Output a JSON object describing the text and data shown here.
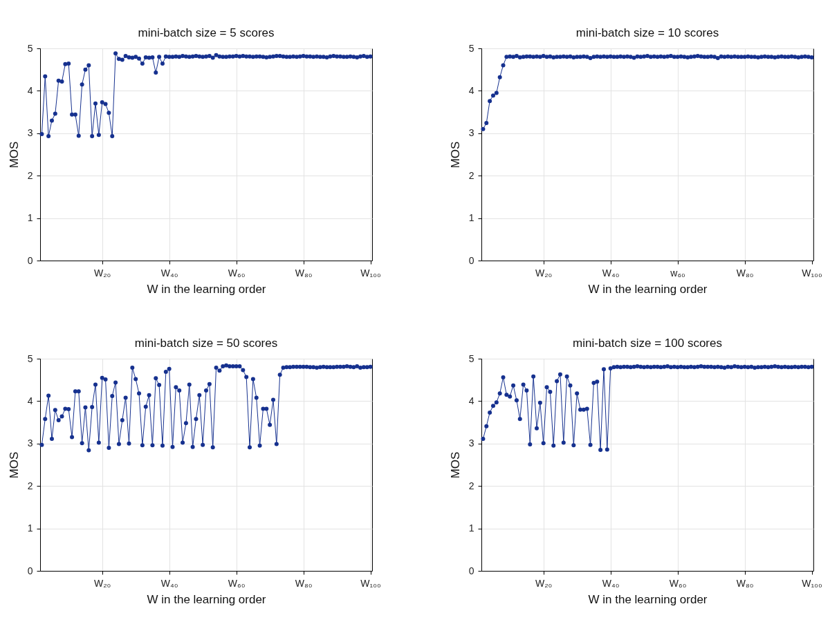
{
  "chart_data": [
    {
      "type": "line",
      "title": "mini-batch size = 5 scores",
      "xlabel": "W in the learning order",
      "ylabel": "MOS",
      "ylim": [
        0,
        5
      ],
      "yticks": [
        0,
        1,
        2,
        3,
        4,
        5
      ],
      "grid": true,
      "marker": "circle",
      "categories": [
        null,
        null,
        null,
        null,
        null,
        null,
        null,
        null,
        null,
        null,
        null,
        null,
        null,
        null,
        null,
        null,
        null,
        null,
        "W₂₀",
        null,
        null,
        null,
        null,
        null,
        null,
        null,
        null,
        null,
        null,
        null,
        null,
        null,
        null,
        null,
        null,
        null,
        null,
        null,
        "W₄₀",
        null,
        null,
        null,
        null,
        null,
        null,
        null,
        null,
        null,
        null,
        null,
        null,
        null,
        null,
        null,
        null,
        null,
        null,
        null,
        "W₆₀",
        null,
        null,
        null,
        null,
        null,
        null,
        null,
        null,
        null,
        null,
        null,
        null,
        null,
        null,
        null,
        null,
        null,
        null,
        null,
        "W₈₀",
        null,
        null,
        null,
        null,
        null,
        null,
        null,
        null,
        null,
        null,
        null,
        null,
        null,
        null,
        null,
        null,
        null,
        null,
        null,
        "W₁₀₀"
      ],
      "series": [
        {
          "color": "#16318f",
          "values": [
            2.98,
            4.34,
            2.93,
            3.3,
            3.46,
            4.24,
            4.22,
            4.63,
            4.64,
            3.44,
            3.44,
            2.94,
            4.15,
            4.5,
            4.6,
            2.93,
            3.7,
            2.96,
            3.73,
            3.69,
            3.48,
            2.93,
            4.88,
            4.75,
            4.73,
            4.82,
            4.79,
            4.78,
            4.8,
            4.76,
            4.64,
            4.79,
            4.78,
            4.79,
            4.43,
            4.8,
            4.64,
            4.81,
            4.8,
            4.8,
            4.81,
            4.8,
            4.82,
            4.81,
            4.8,
            4.81,
            4.82,
            4.81,
            4.8,
            4.81,
            4.82,
            4.78,
            4.84,
            4.81,
            4.8,
            4.8,
            4.81,
            4.81,
            4.82,
            4.81,
            4.82,
            4.81,
            4.81,
            4.8,
            4.81,
            4.81,
            4.8,
            4.79,
            4.8,
            4.81,
            4.82,
            4.82,
            4.81,
            4.8,
            4.8,
            4.81,
            4.8,
            4.81,
            4.82,
            4.81,
            4.81,
            4.8,
            4.81,
            4.8,
            4.8,
            4.79,
            4.81,
            4.82,
            4.81,
            4.81,
            4.8,
            4.8,
            4.81,
            4.8,
            4.79,
            4.81,
            4.82,
            4.8,
            4.81
          ]
        }
      ]
    },
    {
      "type": "line",
      "title": "mini-batch size = 10 scores",
      "xlabel": "W in the learning order",
      "ylabel": "MOS",
      "ylim": [
        0,
        5
      ],
      "yticks": [
        0,
        1,
        2,
        3,
        4,
        5
      ],
      "grid": true,
      "marker": "circle",
      "categories": [
        null,
        null,
        null,
        null,
        null,
        null,
        null,
        null,
        null,
        null,
        null,
        null,
        null,
        null,
        null,
        null,
        null,
        null,
        "W₂₀",
        null,
        null,
        null,
        null,
        null,
        null,
        null,
        null,
        null,
        null,
        null,
        null,
        null,
        null,
        null,
        null,
        null,
        null,
        null,
        "W₄₀",
        null,
        null,
        null,
        null,
        null,
        null,
        null,
        null,
        null,
        null,
        null,
        null,
        null,
        null,
        null,
        null,
        null,
        null,
        null,
        "w₆₀",
        null,
        null,
        null,
        null,
        null,
        null,
        null,
        null,
        null,
        null,
        null,
        null,
        null,
        null,
        null,
        null,
        null,
        null,
        null,
        "W₈₀",
        null,
        null,
        null,
        null,
        null,
        null,
        null,
        null,
        null,
        null,
        null,
        null,
        null,
        null,
        null,
        null,
        null,
        null,
        null,
        "W₁₀₀"
      ],
      "series": [
        {
          "color": "#16318f",
          "values": [
            3.1,
            3.24,
            3.76,
            3.89,
            3.95,
            4.32,
            4.6,
            4.8,
            4.81,
            4.8,
            4.82,
            4.79,
            4.8,
            4.81,
            4.81,
            4.8,
            4.81,
            4.8,
            4.82,
            4.8,
            4.81,
            4.79,
            4.8,
            4.8,
            4.81,
            4.8,
            4.81,
            4.79,
            4.8,
            4.8,
            4.81,
            4.8,
            4.77,
            4.8,
            4.81,
            4.8,
            4.81,
            4.8,
            4.81,
            4.8,
            4.8,
            4.81,
            4.8,
            4.81,
            4.8,
            4.78,
            4.81,
            4.8,
            4.81,
            4.82,
            4.8,
            4.81,
            4.8,
            4.81,
            4.8,
            4.81,
            4.82,
            4.8,
            4.8,
            4.81,
            4.8,
            4.79,
            4.8,
            4.81,
            4.82,
            4.81,
            4.8,
            4.8,
            4.81,
            4.8,
            4.77,
            4.81,
            4.8,
            4.81,
            4.8,
            4.81,
            4.8,
            4.8,
            4.8,
            4.81,
            4.8,
            4.8,
            4.79,
            4.8,
            4.81,
            4.8,
            4.8,
            4.79,
            4.8,
            4.81,
            4.8,
            4.8,
            4.81,
            4.8,
            4.79,
            4.8,
            4.81,
            4.8,
            4.79
          ]
        }
      ]
    },
    {
      "type": "line",
      "title": "mini-batch size = 50 scores",
      "xlabel": "W in the learning order",
      "ylabel": "MOS",
      "ylim": [
        0,
        5
      ],
      "yticks": [
        0,
        1,
        2,
        3,
        4,
        5
      ],
      "grid": true,
      "marker": "circle",
      "categories": [
        null,
        null,
        null,
        null,
        null,
        null,
        null,
        null,
        null,
        null,
        null,
        null,
        null,
        null,
        null,
        null,
        null,
        null,
        "W₂₀",
        null,
        null,
        null,
        null,
        null,
        null,
        null,
        null,
        null,
        null,
        null,
        null,
        null,
        null,
        null,
        null,
        null,
        null,
        null,
        "W₄₀",
        null,
        null,
        null,
        null,
        null,
        null,
        null,
        null,
        null,
        null,
        null,
        null,
        null,
        null,
        null,
        null,
        null,
        null,
        null,
        "W₆₀",
        null,
        null,
        null,
        null,
        null,
        null,
        null,
        null,
        null,
        null,
        null,
        null,
        null,
        null,
        null,
        null,
        null,
        null,
        null,
        "W₈₀",
        null,
        null,
        null,
        null,
        null,
        null,
        null,
        null,
        null,
        null,
        null,
        null,
        null,
        null,
        null,
        null,
        null,
        null,
        null,
        "W₁₀₀"
      ],
      "series": [
        {
          "color": "#16318f",
          "values": [
            2.97,
            3.58,
            4.13,
            3.11,
            3.79,
            3.55,
            3.64,
            3.82,
            3.81,
            3.15,
            4.23,
            4.23,
            3.01,
            3.85,
            2.84,
            3.86,
            4.39,
            3.02,
            4.55,
            4.51,
            2.9,
            4.12,
            4.44,
            2.99,
            3.55,
            4.08,
            3.0,
            4.79,
            4.52,
            4.18,
            2.96,
            3.87,
            4.14,
            2.96,
            4.54,
            4.38,
            2.95,
            4.69,
            4.76,
            2.92,
            4.33,
            4.25,
            3.02,
            3.48,
            4.39,
            2.92,
            3.58,
            4.14,
            2.97,
            4.25,
            4.4,
            2.91,
            4.79,
            4.72,
            4.82,
            4.84,
            4.82,
            4.82,
            4.82,
            4.82,
            4.73,
            4.57,
            2.91,
            4.52,
            4.08,
            2.95,
            3.82,
            3.82,
            3.44,
            4.03,
            2.99,
            4.62,
            4.79,
            4.8,
            4.8,
            4.81,
            4.81,
            4.81,
            4.81,
            4.81,
            4.8,
            4.8,
            4.79,
            4.8,
            4.81,
            4.8,
            4.8,
            4.8,
            4.81,
            4.81,
            4.81,
            4.82,
            4.81,
            4.8,
            4.82,
            4.79,
            4.8,
            4.8,
            4.81
          ]
        }
      ]
    },
    {
      "type": "line",
      "title": "mini-batch size = 100 scores",
      "xlabel": "W in the learning order",
      "ylabel": "MOS",
      "ylim": [
        0,
        5
      ],
      "yticks": [
        0,
        1,
        2,
        3,
        4,
        5
      ],
      "grid": true,
      "marker": "circle",
      "categories": [
        null,
        null,
        null,
        null,
        null,
        null,
        null,
        null,
        null,
        null,
        null,
        null,
        null,
        null,
        null,
        null,
        null,
        null,
        "W₂₀",
        null,
        null,
        null,
        null,
        null,
        null,
        null,
        null,
        null,
        null,
        null,
        null,
        null,
        null,
        null,
        null,
        null,
        null,
        null,
        "W₄₀",
        null,
        null,
        null,
        null,
        null,
        null,
        null,
        null,
        null,
        null,
        null,
        null,
        null,
        null,
        null,
        null,
        null,
        null,
        null,
        "W₆₀",
        null,
        null,
        null,
        null,
        null,
        null,
        null,
        null,
        null,
        null,
        null,
        null,
        null,
        null,
        null,
        null,
        null,
        null,
        null,
        "W₈₀",
        null,
        null,
        null,
        null,
        null,
        null,
        null,
        null,
        null,
        null,
        null,
        null,
        null,
        null,
        null,
        null,
        null,
        null,
        null,
        "W₁₀₀"
      ],
      "series": [
        {
          "color": "#16318f",
          "values": [
            3.11,
            3.41,
            3.73,
            3.89,
            3.97,
            4.18,
            4.56,
            4.15,
            4.11,
            4.37,
            4.02,
            3.58,
            4.39,
            4.25,
            2.98,
            4.58,
            3.36,
            3.96,
            3.01,
            4.33,
            4.22,
            2.95,
            4.47,
            4.63,
            3.02,
            4.58,
            4.37,
            2.96,
            4.18,
            3.8,
            3.8,
            3.82,
            2.97,
            4.43,
            4.46,
            2.85,
            4.75,
            2.86,
            4.77,
            4.8,
            4.81,
            4.8,
            4.81,
            4.81,
            4.8,
            4.81,
            4.82,
            4.81,
            4.8,
            4.81,
            4.8,
            4.81,
            4.81,
            4.8,
            4.81,
            4.82,
            4.8,
            4.81,
            4.8,
            4.81,
            4.8,
            4.8,
            4.81,
            4.8,
            4.81,
            4.82,
            4.81,
            4.81,
            4.81,
            4.8,
            4.81,
            4.8,
            4.79,
            4.81,
            4.8,
            4.82,
            4.81,
            4.8,
            4.81,
            4.8,
            4.81,
            4.79,
            4.8,
            4.8,
            4.81,
            4.8,
            4.81,
            4.82,
            4.81,
            4.8,
            4.81,
            4.8,
            4.8,
            4.81,
            4.8,
            4.81,
            4.81,
            4.8,
            4.81
          ]
        }
      ]
    }
  ]
}
